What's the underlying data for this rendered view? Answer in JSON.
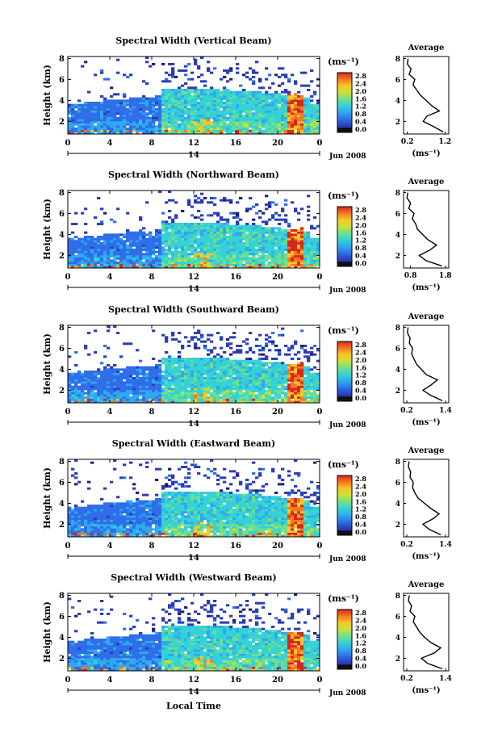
{
  "figure": {
    "xlabel": "Local Time",
    "date_label": "Jun 2008",
    "day_label": "14",
    "ylabel": "Height (km)",
    "colorbar_unit": "(ms⁻¹)",
    "avg_title": "Average",
    "avg_xlabel": "(ms⁻¹)",
    "colormap": [
      "#1e1e78",
      "#2a3cb8",
      "#2f6ee8",
      "#2fa8f0",
      "#34d2d6",
      "#6ee08a",
      "#c8e23c",
      "#f6c828",
      "#f47a22",
      "#d8261e"
    ]
  },
  "chart_data": [
    {
      "type": "heatmap",
      "title": "Spectral Width (Vertical Beam)",
      "x_ticks": [
        "0",
        "4",
        "8",
        "12",
        "16",
        "20",
        "0"
      ],
      "xlim": [
        0,
        24
      ],
      "y_ticks": [
        "2",
        "4",
        "6",
        "8"
      ],
      "ylim": [
        0.8,
        8.2
      ],
      "colorbar_ticks": [
        "2.8",
        "2.4",
        "2.0",
        "1.6",
        "1.2",
        "0.8",
        "0.4",
        "0.0"
      ],
      "clim": [
        0,
        2.8
      ],
      "average": {
        "x_ticks": [
          "0.2",
          "1.2"
        ],
        "xlim": [
          0.1,
          1.3
        ],
        "y_ticks": [
          "2",
          "4",
          "6",
          "8"
        ],
        "heights": [
          1.0,
          1.5,
          2.0,
          2.5,
          3.0,
          3.5,
          4.0,
          4.5,
          5.0,
          5.5,
          6.0,
          6.5,
          7.0,
          7.5,
          8.0
        ],
        "values": [
          1.15,
          0.9,
          0.62,
          0.72,
          1.05,
          0.85,
          0.7,
          0.55,
          0.45,
          0.35,
          0.4,
          0.25,
          0.3,
          0.2,
          0.22
        ]
      }
    },
    {
      "type": "heatmap",
      "title": "Spectral Width (Northward Beam)",
      "x_ticks": [
        "0",
        "4",
        "8",
        "12",
        "16",
        "20",
        "0"
      ],
      "xlim": [
        0,
        24
      ],
      "y_ticks": [
        "2",
        "4",
        "6",
        "8"
      ],
      "ylim": [
        0.8,
        8.2
      ],
      "colorbar_ticks": [
        "2.8",
        "2.4",
        "2.0",
        "1.6",
        "1.2",
        "0.8",
        "0.4",
        "0.0"
      ],
      "clim": [
        0,
        2.8
      ],
      "average": {
        "x_ticks": [
          "0.8",
          "1.8"
        ],
        "xlim": [
          0.6,
          1.9
        ],
        "y_ticks": [
          "2",
          "4",
          "6",
          "8"
        ],
        "heights": [
          1.0,
          1.5,
          2.0,
          2.5,
          3.0,
          3.5,
          4.0,
          4.5,
          5.0,
          5.5,
          6.0,
          6.5,
          7.0,
          7.5,
          8.0
        ],
        "values": [
          1.7,
          1.25,
          1.05,
          1.35,
          1.55,
          1.3,
          1.15,
          1.0,
          0.95,
          0.85,
          0.9,
          0.75,
          0.8,
          0.7,
          0.72
        ]
      }
    },
    {
      "type": "heatmap",
      "title": "Spectral Width (Southward Beam)",
      "x_ticks": [
        "0",
        "4",
        "8",
        "12",
        "16",
        "20",
        "0"
      ],
      "xlim": [
        0,
        24
      ],
      "y_ticks": [
        "2",
        "4",
        "6",
        "8"
      ],
      "ylim": [
        0.8,
        8.2
      ],
      "colorbar_ticks": [
        "2.8",
        "2.4",
        "2.0",
        "1.6",
        "1.2",
        "0.8",
        "0.4",
        "0.0"
      ],
      "clim": [
        0,
        2.8
      ],
      "average": {
        "x_ticks": [
          "0.2",
          "1.4"
        ],
        "xlim": [
          0.1,
          1.5
        ],
        "y_ticks": [
          "2",
          "4",
          "6",
          "8"
        ],
        "heights": [
          1.0,
          1.5,
          2.0,
          2.5,
          3.0,
          3.5,
          4.0,
          4.5,
          5.0,
          5.5,
          6.0,
          6.5,
          7.0,
          7.5,
          8.0
        ],
        "values": [
          1.3,
          0.95,
          0.7,
          0.95,
          1.15,
          0.8,
          0.65,
          0.5,
          0.42,
          0.35,
          0.38,
          0.28,
          0.3,
          0.22,
          0.24
        ]
      }
    },
    {
      "type": "heatmap",
      "title": "Spectral Width (Eastward Beam)",
      "x_ticks": [
        "0",
        "4",
        "8",
        "12",
        "16",
        "20",
        "0"
      ],
      "xlim": [
        0,
        24
      ],
      "y_ticks": [
        "2",
        "4",
        "6",
        "8"
      ],
      "ylim": [
        0.8,
        8.2
      ],
      "colorbar_ticks": [
        "2.8",
        "2.4",
        "2.0",
        "1.6",
        "1.2",
        "0.8",
        "0.4",
        "0.0"
      ],
      "clim": [
        0,
        2.8
      ],
      "average": {
        "x_ticks": [
          "0.2",
          "1.4"
        ],
        "xlim": [
          0.1,
          1.5
        ],
        "y_ticks": [
          "2",
          "4",
          "6",
          "8"
        ],
        "heights": [
          1.0,
          1.5,
          2.0,
          2.5,
          3.0,
          3.5,
          4.0,
          4.5,
          5.0,
          5.5,
          6.0,
          6.5,
          7.0,
          7.5,
          8.0
        ],
        "values": [
          1.25,
          0.9,
          0.7,
          1.0,
          1.2,
          0.95,
          0.75,
          0.55,
          0.45,
          0.38,
          0.4,
          0.3,
          0.32,
          0.25,
          0.27
        ]
      }
    },
    {
      "type": "heatmap",
      "title": "Spectral Width (Westward Beam)",
      "x_ticks": [
        "0",
        "4",
        "8",
        "12",
        "16",
        "20",
        "0"
      ],
      "xlim": [
        0,
        24
      ],
      "y_ticks": [
        "2",
        "4",
        "6",
        "8"
      ],
      "ylim": [
        0.8,
        8.2
      ],
      "colorbar_ticks": [
        "2.8",
        "2.4",
        "2.0",
        "1.6",
        "1.2",
        "0.8",
        "0.4",
        "0.0"
      ],
      "clim": [
        0,
        2.8
      ],
      "average": {
        "x_ticks": [
          "0.2",
          "1.4"
        ],
        "xlim": [
          0.1,
          1.5
        ],
        "y_ticks": [
          "2",
          "4",
          "6",
          "8"
        ],
        "heights": [
          1.0,
          1.5,
          2.0,
          2.5,
          3.0,
          3.5,
          4.0,
          4.5,
          5.0,
          5.5,
          6.0,
          6.5,
          7.0,
          7.5,
          8.0
        ],
        "values": [
          1.3,
          0.85,
          0.65,
          1.05,
          1.25,
          0.95,
          0.75,
          0.6,
          0.5,
          0.4,
          0.45,
          0.3,
          0.35,
          0.25,
          0.28
        ]
      }
    }
  ]
}
